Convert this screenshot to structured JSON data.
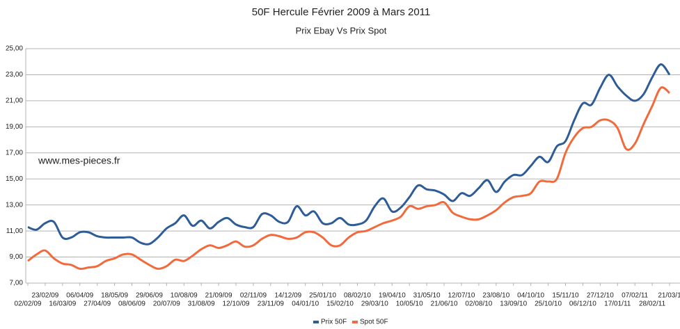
{
  "chart_data": {
    "type": "line",
    "title": "50F Hercule Février 2009 à Mars 2011",
    "subtitle": "Prix Ebay Vs Prix Spot",
    "annotation": "www.mes-pieces.fr",
    "categories": [
      "02/02/09",
      null,
      "23/02/09",
      null,
      "16/03/09",
      null,
      "06/04/09",
      null,
      "27/04/09",
      null,
      "18/05/09",
      null,
      "08/06/09",
      null,
      "29/06/09",
      null,
      "20/07/09",
      null,
      "10/08/09",
      null,
      "31/08/09",
      null,
      "21/09/09",
      null,
      "12/10/09",
      null,
      "02/11/09",
      null,
      "23/11/09",
      null,
      "14/12/09",
      null,
      "04/01/10",
      null,
      "25/01/10",
      null,
      "15/02/10",
      null,
      "08/02/10",
      null,
      "29/03/10",
      null,
      "19/04/10",
      null,
      "10/05/10",
      null,
      "31/05/10",
      null,
      "21/06/10",
      null,
      "12/07/10",
      null,
      "02/08/10",
      null,
      "23/08/10",
      null,
      "13/09/10",
      null,
      "04/10/10",
      null,
      "25/10/10",
      null,
      "15/11/10",
      null,
      "06/12/10",
      null,
      "27/12/10",
      null,
      "17/01/11",
      null,
      "07/02/11",
      null,
      "28/02/11",
      null,
      "21/03/1"
    ],
    "series": [
      {
        "name": "Prix 50F",
        "color": "#2e5c96",
        "values": [
          11.3,
          11.1,
          11.6,
          11.7,
          10.5,
          10.5,
          10.9,
          10.9,
          10.6,
          10.5,
          10.5,
          10.5,
          10.5,
          10.1,
          10.0,
          10.5,
          11.2,
          11.6,
          12.2,
          11.4,
          11.8,
          11.2,
          11.7,
          12.0,
          11.5,
          11.3,
          11.3,
          12.3,
          12.2,
          11.7,
          11.7,
          12.9,
          12.2,
          12.5,
          11.6,
          11.6,
          12.0,
          11.5,
          11.5,
          11.8,
          12.9,
          13.5,
          12.5,
          12.8,
          13.6,
          14.5,
          14.2,
          14.1,
          13.8,
          13.3,
          13.9,
          13.7,
          14.3,
          14.9,
          14.0,
          14.8,
          15.3,
          15.3,
          16.0,
          16.7,
          16.3,
          17.5,
          17.9,
          19.5,
          20.8,
          20.7,
          22.0,
          23.0,
          22.1,
          21.4,
          21.0,
          21.5,
          22.8,
          23.8,
          23.0
        ]
      },
      {
        "name": "Spot 50F",
        "color": "#f26a3c",
        "values": [
          8.7,
          9.2,
          9.5,
          8.9,
          8.5,
          8.4,
          8.1,
          8.2,
          8.3,
          8.7,
          8.9,
          9.2,
          9.2,
          8.8,
          8.4,
          8.1,
          8.3,
          8.8,
          8.7,
          9.1,
          9.6,
          9.9,
          9.7,
          9.9,
          10.2,
          9.8,
          9.9,
          10.4,
          10.7,
          10.6,
          10.4,
          10.5,
          10.9,
          10.9,
          10.5,
          9.9,
          9.9,
          10.5,
          10.9,
          11.0,
          11.3,
          11.6,
          11.8,
          12.1,
          12.9,
          12.7,
          12.9,
          13.0,
          13.2,
          12.4,
          12.1,
          11.9,
          11.9,
          12.2,
          12.6,
          13.2,
          13.6,
          13.7,
          13.9,
          14.8,
          14.8,
          15.0,
          17.0,
          18.2,
          18.9,
          19.0,
          19.5,
          19.5,
          18.9,
          17.3,
          17.7,
          19.2,
          20.6,
          22.0,
          21.6
        ]
      }
    ],
    "ylim": [
      7,
      25
    ],
    "yticks": [
      {
        "value": 7,
        "label": "7,00"
      },
      {
        "value": 9,
        "label": "9,00"
      },
      {
        "value": 11,
        "label": "11,00"
      },
      {
        "value": 13,
        "label": "13,00"
      },
      {
        "value": 15,
        "label": "15,00"
      },
      {
        "value": 17,
        "label": "17,00"
      },
      {
        "value": 19,
        "label": "19,00"
      },
      {
        "value": 21,
        "label": "21,00"
      },
      {
        "value": 23,
        "label": "23,00"
      },
      {
        "value": 25,
        "label": "25,00"
      }
    ],
    "grid": true,
    "legend": "bottom"
  }
}
